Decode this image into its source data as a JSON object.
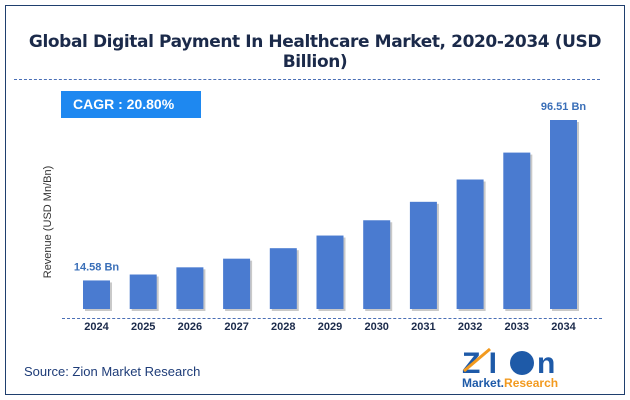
{
  "chart_data": {
    "type": "bar",
    "title": "Global Digital Payment In Healthcare Market, 2020-2034 (USD Billion)",
    "ylabel": "Revenue (USD Mn/Bn)",
    "xlabel": "",
    "categories": [
      "2024",
      "2025",
      "2026",
      "2027",
      "2028",
      "2029",
      "2030",
      "2031",
      "2032",
      "2033",
      "2034"
    ],
    "values": [
      14.58,
      17.61,
      21.28,
      25.7,
      31.05,
      37.51,
      45.31,
      54.73,
      66.12,
      79.87,
      96.51
    ],
    "data_labels": {
      "0": "14.58 Bn",
      "10": "96.51 Bn"
    },
    "ylim": [
      0,
      100
    ],
    "grid": false,
    "bar_color": "#4a7bd0",
    "cagr_label": "CAGR :  20.80%",
    "source": "Source: Zion Market Research"
  },
  "logo": {
    "text_main": "ZION",
    "text_sub": "Market.Research"
  }
}
